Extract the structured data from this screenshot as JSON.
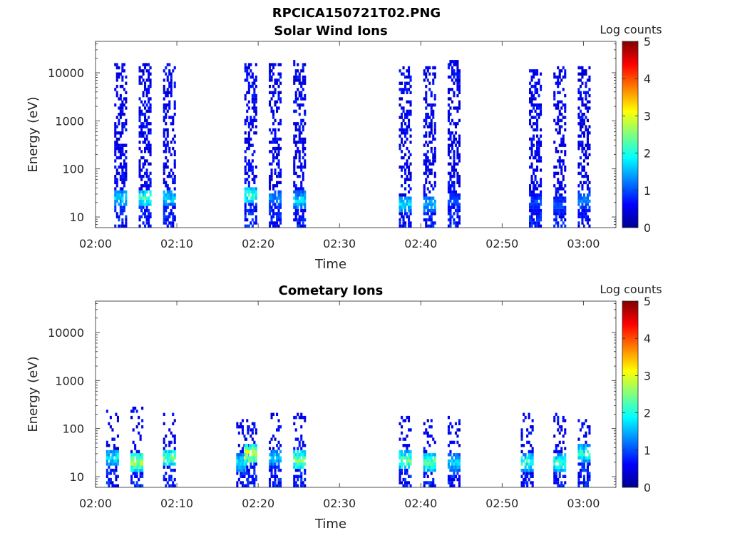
{
  "figure_title": "RPCICA150721T02.PNG",
  "chart_data": [
    {
      "type": "heatmap",
      "title": "Solar Wind Ions",
      "xlabel": "Time",
      "ylabel": "Energy (eV)",
      "x_tick_labels": [
        "02:00",
        "02:10",
        "02:20",
        "02:30",
        "02:40",
        "02:50",
        "03:00"
      ],
      "xlim": [
        "02:00",
        "03:04"
      ],
      "y_scale": "log",
      "y_tick_labels": [
        "10",
        "100",
        "1000",
        "10000"
      ],
      "ylim": [
        6,
        45000
      ],
      "colorbar": {
        "label": "Log counts",
        "range": [
          0,
          5
        ],
        "tick_labels": [
          "0",
          "1",
          "2",
          "3",
          "4",
          "5"
        ],
        "colormap": "jet"
      },
      "grid": false,
      "bursts": [
        {
          "time": "02:03",
          "emax": 16000,
          "peak_energy": 25,
          "peak_log_counts": 2.0
        },
        {
          "time": "02:06",
          "emax": 16000,
          "peak_energy": 25,
          "peak_log_counts": 2.6
        },
        {
          "time": "02:09",
          "emax": 15000,
          "peak_energy": 25,
          "peak_log_counts": 2.0
        },
        {
          "time": "02:19",
          "emax": 16000,
          "peak_energy": 28,
          "peak_log_counts": 2.5
        },
        {
          "time": "02:22",
          "emax": 15000,
          "peak_energy": 25,
          "peak_log_counts": 1.5
        },
        {
          "time": "02:25",
          "emax": 18000,
          "peak_energy": 22,
          "peak_log_counts": 2.0
        },
        {
          "time": "02:38",
          "emax": 14000,
          "peak_energy": 18,
          "peak_log_counts": 2.0
        },
        {
          "time": "02:41",
          "emax": 14000,
          "peak_energy": 18,
          "peak_log_counts": 1.8
        },
        {
          "time": "02:44",
          "emax": 18000,
          "peak_energy": 22,
          "peak_log_counts": 1.2
        },
        {
          "time": "02:54",
          "emax": 12000,
          "peak_energy": 20,
          "peak_log_counts": 1.2
        },
        {
          "time": "02:57",
          "emax": 14000,
          "peak_energy": 18,
          "peak_log_counts": 1.2
        },
        {
          "time": "03:00",
          "emax": 13000,
          "peak_energy": 22,
          "peak_log_counts": 1.5
        }
      ]
    },
    {
      "type": "heatmap",
      "title": "Cometary Ions",
      "xlabel": "Time",
      "ylabel": "Energy (eV)",
      "x_tick_labels": [
        "02:00",
        "02:10",
        "02:20",
        "02:30",
        "02:40",
        "02:50",
        "03:00"
      ],
      "xlim": [
        "02:00",
        "03:04"
      ],
      "y_scale": "log",
      "y_tick_labels": [
        "10",
        "100",
        "1000",
        "10000"
      ],
      "ylim": [
        6,
        45000
      ],
      "colorbar": {
        "label": "Log counts",
        "range": [
          0,
          5
        ],
        "tick_labels": [
          "0",
          "1",
          "2",
          "3",
          "4",
          "5"
        ],
        "colormap": "jet"
      },
      "grid": false,
      "bursts": [
        {
          "time": "02:02",
          "emax": 250,
          "peak_energy": 25,
          "peak_log_counts": 2.2
        },
        {
          "time": "02:05",
          "emax": 300,
          "peak_energy": 20,
          "peak_log_counts": 3.2
        },
        {
          "time": "02:09",
          "emax": 200,
          "peak_energy": 25,
          "peak_log_counts": 2.8
        },
        {
          "time": "02:18",
          "emax": 150,
          "peak_energy": 20,
          "peak_log_counts": 2.2
        },
        {
          "time": "02:19",
          "emax": 150,
          "peak_energy": 30,
          "peak_log_counts": 3.5
        },
        {
          "time": "02:22",
          "emax": 200,
          "peak_energy": 25,
          "peak_log_counts": 2.0
        },
        {
          "time": "02:25",
          "emax": 200,
          "peak_energy": 22,
          "peak_log_counts": 3.0
        },
        {
          "time": "02:38",
          "emax": 180,
          "peak_energy": 22,
          "peak_log_counts": 2.8
        },
        {
          "time": "02:41",
          "emax": 150,
          "peak_energy": 20,
          "peak_log_counts": 2.8
        },
        {
          "time": "02:44",
          "emax": 180,
          "peak_energy": 20,
          "peak_log_counts": 2.0
        },
        {
          "time": "02:53",
          "emax": 200,
          "peak_energy": 20,
          "peak_log_counts": 2.5
        },
        {
          "time": "02:57",
          "emax": 200,
          "peak_energy": 20,
          "peak_log_counts": 2.5
        },
        {
          "time": "03:00",
          "emax": 150,
          "peak_energy": 30,
          "peak_log_counts": 2.5
        }
      ]
    }
  ]
}
